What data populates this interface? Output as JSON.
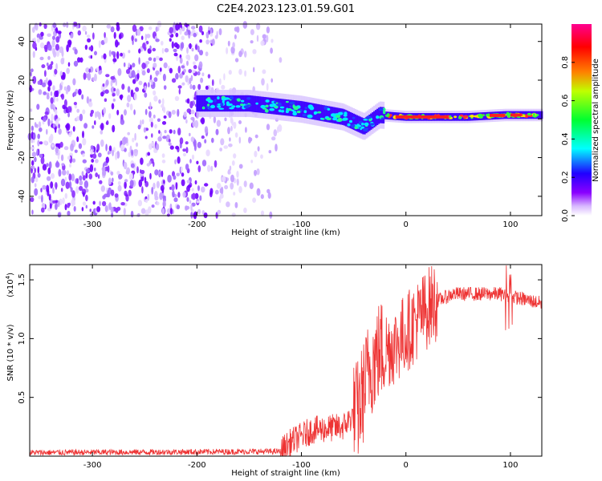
{
  "title": "C2E4.2023.123.01.59.G01",
  "chart_data": [
    {
      "type": "heatmap",
      "xlabel": "Height of straight line (km)",
      "ylabel": "Frequency (Hz)",
      "xlim": [
        -360,
        130
      ],
      "ylim": [
        -50,
        49
      ],
      "xticks": [
        -300,
        -200,
        -100,
        0,
        100
      ],
      "yticks": [
        -40,
        -20,
        0,
        20,
        40
      ],
      "colorbar": {
        "label": "Normalized spectral amplitude",
        "range": [
          0,
          1
        ],
        "ticks": [
          "0.0",
          "0.2",
          "0.4",
          "0.6",
          "0.8"
        ],
        "colors": [
          "#ffffff",
          "#c8a0ff",
          "#7a00ff",
          "#0000ff",
          "#00ffff",
          "#00ff40",
          "#ffff00",
          "#ff8000",
          "#ff0000",
          "#ff0080"
        ]
      },
      "ridge": [
        {
          "x": -195,
          "y": 8
        },
        {
          "x": -150,
          "y": 8
        },
        {
          "x": -100,
          "y": 5
        },
        {
          "x": -60,
          "y": 1
        },
        {
          "x": -40,
          "y": -4
        },
        {
          "x": -25,
          "y": 2
        },
        {
          "x": 0,
          "y": 1
        },
        {
          "x": 60,
          "y": 1
        },
        {
          "x": 95,
          "y": 2
        },
        {
          "x": 130,
          "y": 2
        }
      ]
    },
    {
      "type": "line",
      "xlabel": "Height of straight line (km)",
      "ylabel": "SNR (10 * v/v)",
      "scale_note": "(x10",
      "scale_exp": "4",
      "scale_close": ")",
      "xlim": [
        -360,
        130
      ],
      "ylim": [
        0,
        1.63
      ],
      "xticks": [
        -300,
        -200,
        -100,
        0,
        100
      ],
      "yticks": [
        0.5,
        1.0,
        1.5
      ],
      "ytick_labels": [
        "0.5",
        "1.0",
        "1.5"
      ],
      "series": [
        {
          "color": "#ee3333",
          "envelope": [
            {
              "x": -360,
              "y": 0.03
            },
            {
              "x": -120,
              "y": 0.04
            },
            {
              "x": -110,
              "y": 0.12
            },
            {
              "x": -90,
              "y": 0.22
            },
            {
              "x": -60,
              "y": 0.25
            },
            {
              "x": -45,
              "y": 0.4
            },
            {
              "x": -35,
              "y": 0.75
            },
            {
              "x": -25,
              "y": 0.9
            },
            {
              "x": -10,
              "y": 0.95
            },
            {
              "x": 5,
              "y": 1.1
            },
            {
              "x": 25,
              "y": 1.3
            },
            {
              "x": 45,
              "y": 1.38
            },
            {
              "x": 90,
              "y": 1.38
            },
            {
              "x": 130,
              "y": 1.3
            }
          ]
        }
      ]
    }
  ]
}
